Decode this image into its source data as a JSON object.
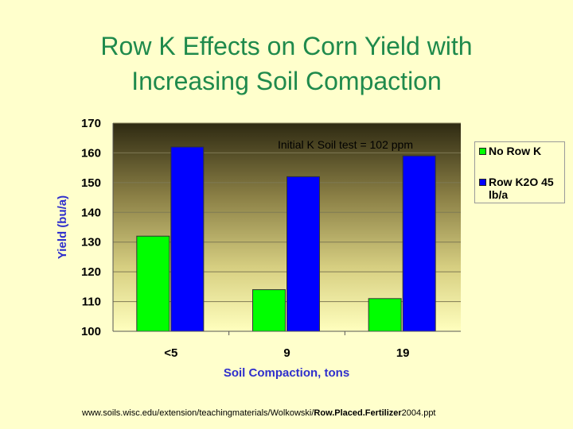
{
  "title_lines": [
    "Row K Effects on Corn Yield with",
    "Increasing Soil Compaction"
  ],
  "footer": {
    "prefix": "www.soils.wisc.edu/extension/teachingmaterials/Wolkowski/",
    "bold": "Row.Placed.Fertilizer",
    "suffix": "2004.ppt"
  },
  "colors": {
    "title": "#1f8a4c",
    "axis_label": "#2f2fcc",
    "no_row_k": "#00ff00",
    "row_k2o": "#0000ff"
  },
  "chart_data": {
    "type": "bar",
    "title": "Row K Effects on Corn Yield with Increasing Soil Compaction",
    "annotation": "Initial K Soil test = 102 ppm",
    "xlabel": "Soil Compaction, tons",
    "ylabel": "Yield (bu/a)",
    "categories": [
      "<5",
      "9",
      "19"
    ],
    "ylim": [
      100,
      170
    ],
    "yticks": [
      100,
      110,
      120,
      130,
      140,
      150,
      160,
      170
    ],
    "grid": true,
    "legend_position": "right",
    "series": [
      {
        "name": "No Row K",
        "color": "#00ff00",
        "values": [
          132,
          114,
          111
        ]
      },
      {
        "name": "Row K2O 45 lb/a",
        "color": "#0000ff",
        "values": [
          162,
          152,
          159
        ]
      }
    ]
  }
}
